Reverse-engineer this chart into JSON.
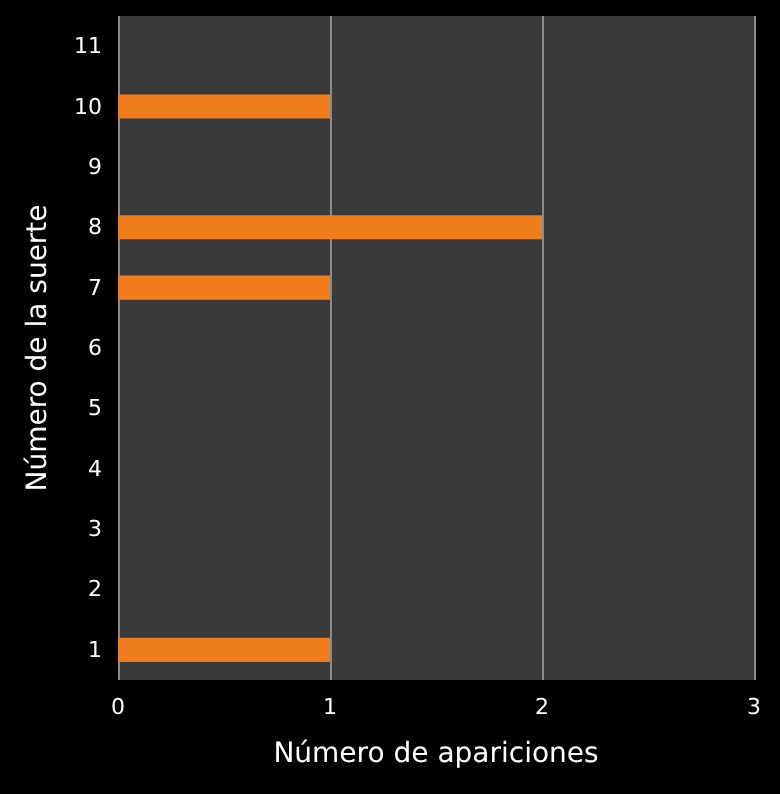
{
  "chart_data": {
    "type": "bar",
    "orientation": "horizontal",
    "xlabel": "Número de apariciones",
    "ylabel": "Número de la suerte",
    "categories": [
      "11",
      "10",
      "9",
      "8",
      "7",
      "6",
      "5",
      "4",
      "3",
      "2",
      "1"
    ],
    "values": [
      0,
      1,
      0,
      2,
      1,
      0,
      0,
      0,
      0,
      0,
      1
    ],
    "color": "#f07d1c",
    "xlim": [
      0,
      3
    ],
    "xticks": [
      0,
      1,
      2,
      3
    ],
    "grid": "x"
  }
}
